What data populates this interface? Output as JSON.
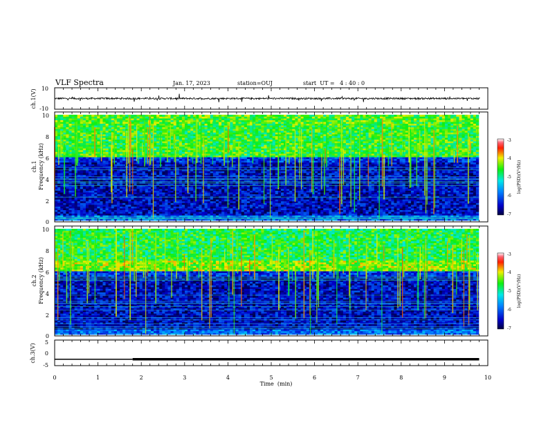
{
  "header": {
    "title": "VLF Spectra",
    "date": "Jan. 17, 2023",
    "station": "station=OUJ",
    "start_ut": "start  UT =   4 : 40 : 0"
  },
  "chart_data": [
    {
      "type": "line",
      "panel": "ch1-waveform",
      "ylabel": "ch.1(V)",
      "ylim": [
        -10,
        10
      ],
      "yticks": [
        "10",
        "-10"
      ],
      "trace_level": 0,
      "note_on_values": "noise trace around 0 V with spikes"
    },
    {
      "type": "heatmap",
      "panel": "ch1-spectrogram",
      "ylabel_line1": "ch.1",
      "ylabel_line2": "Frequency  (kHz)",
      "ylim": [
        0,
        10
      ],
      "yticks": [
        "0",
        "2",
        "4",
        "6",
        "8",
        "10"
      ],
      "colorbar": {
        "label": "log(PSD)(V²/Hz)",
        "range": [
          -7,
          -3
        ],
        "ticks": [
          "-3",
          "-4",
          "-5",
          "-6",
          "-7"
        ]
      },
      "bands": [
        {
          "from_khz": 0,
          "to_khz": 6,
          "level": "low (-6.5)"
        },
        {
          "from_khz": 6,
          "to_khz": 10,
          "level": "high (-4.5)"
        }
      ]
    },
    {
      "type": "heatmap",
      "panel": "ch2-spectrogram",
      "ylabel_line1": "ch.2",
      "ylabel_line2": "Frequency  (kHz)",
      "ylim": [
        0,
        10
      ],
      "yticks": [
        "0",
        "2",
        "4",
        "6",
        "8",
        "10"
      ],
      "colorbar": {
        "label": "log(PSD)(V²/Hz)",
        "range": [
          -7,
          -3
        ],
        "ticks": [
          "-3",
          "-4",
          "-5",
          "-6",
          "-7"
        ]
      },
      "bands": [
        {
          "from_khz": 0,
          "to_khz": 6,
          "level": "low (-6.5)"
        },
        {
          "from_khz": 6,
          "to_khz": 7,
          "level": "high (-4.3)"
        },
        {
          "from_khz": 7,
          "to_khz": 10,
          "level": "medium-high (-4.7)"
        }
      ]
    },
    {
      "type": "line",
      "panel": "ch3-waveform",
      "ylabel": "ch.3(V)",
      "ylim": [
        -5,
        5
      ],
      "yticks": [
        "5",
        "0",
        "-5"
      ],
      "series": [
        {
          "x": [
            0,
            1.8
          ],
          "y": [
            -2.5,
            -2.5
          ]
        },
        {
          "x": [
            1.8,
            9.8
          ],
          "y": [
            -2.5,
            -2.5
          ]
        }
      ]
    }
  ],
  "time_axis": {
    "label": "Time  (min)",
    "xlim": [
      0,
      10
    ],
    "ticks": [
      "0",
      "1",
      "2",
      "3",
      "4",
      "5",
      "6",
      "7",
      "8",
      "9",
      "10"
    ]
  }
}
